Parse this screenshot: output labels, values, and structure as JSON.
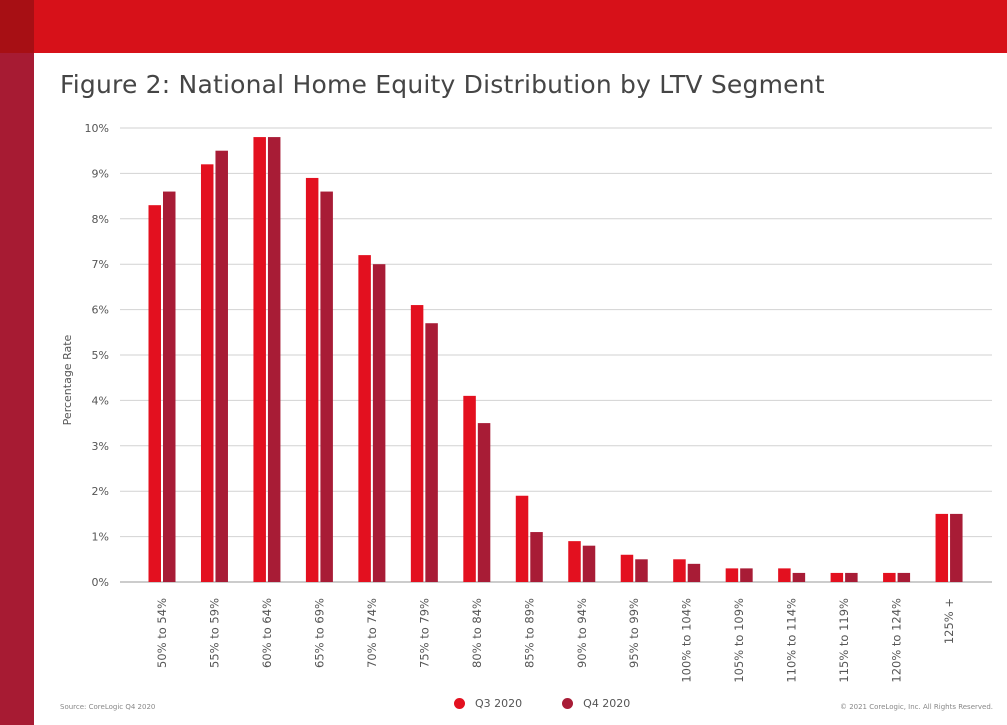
{
  "title": "Figure 2: National Home Equity Distribution by LTV Segment",
  "source": "Source: CoreLogic Q4 2020",
  "copyright": "© 2021 CoreLogic, Inc. All Rights Reserved.",
  "colors": {
    "q3": "#e3101f",
    "q4": "#a81c36",
    "brand_red": "#d71119",
    "brand_dark": "#a71b33"
  },
  "chart_data": {
    "type": "bar",
    "title": "Figure 2: National Home Equity Distribution by LTV Segment",
    "xlabel": "",
    "ylabel": "Percentage Rate",
    "ylim": [
      0,
      10
    ],
    "yticks": [
      "0%",
      "1%",
      "2%",
      "3%",
      "4%",
      "5%",
      "6%",
      "7%",
      "8%",
      "9%",
      "10%"
    ],
    "grid": true,
    "legend_position": "bottom-center",
    "categories": [
      "50% to 54%",
      "55% to 59%",
      "60% to 64%",
      "65% to 69%",
      "70% to 74%",
      "75% to 79%",
      "80% to 84%",
      "85% to 89%",
      "90% to 94%",
      "95% to 99%",
      "100% to 104%",
      "105% to 109%",
      "110% to 114%",
      "115% to 119%",
      "120% to 124%",
      "125% +"
    ],
    "series": [
      {
        "name": "Q3 2020",
        "color": "#e3101f",
        "values": [
          8.3,
          9.2,
          9.8,
          8.9,
          7.2,
          6.1,
          4.1,
          1.9,
          0.9,
          0.6,
          0.5,
          0.3,
          0.3,
          0.2,
          0.2,
          1.5
        ]
      },
      {
        "name": "Q4 2020",
        "color": "#a81c36",
        "values": [
          8.6,
          9.5,
          9.8,
          8.6,
          7.0,
          5.7,
          3.5,
          1.1,
          0.8,
          0.5,
          0.4,
          0.3,
          0.2,
          0.2,
          0.2,
          1.5
        ]
      }
    ]
  }
}
